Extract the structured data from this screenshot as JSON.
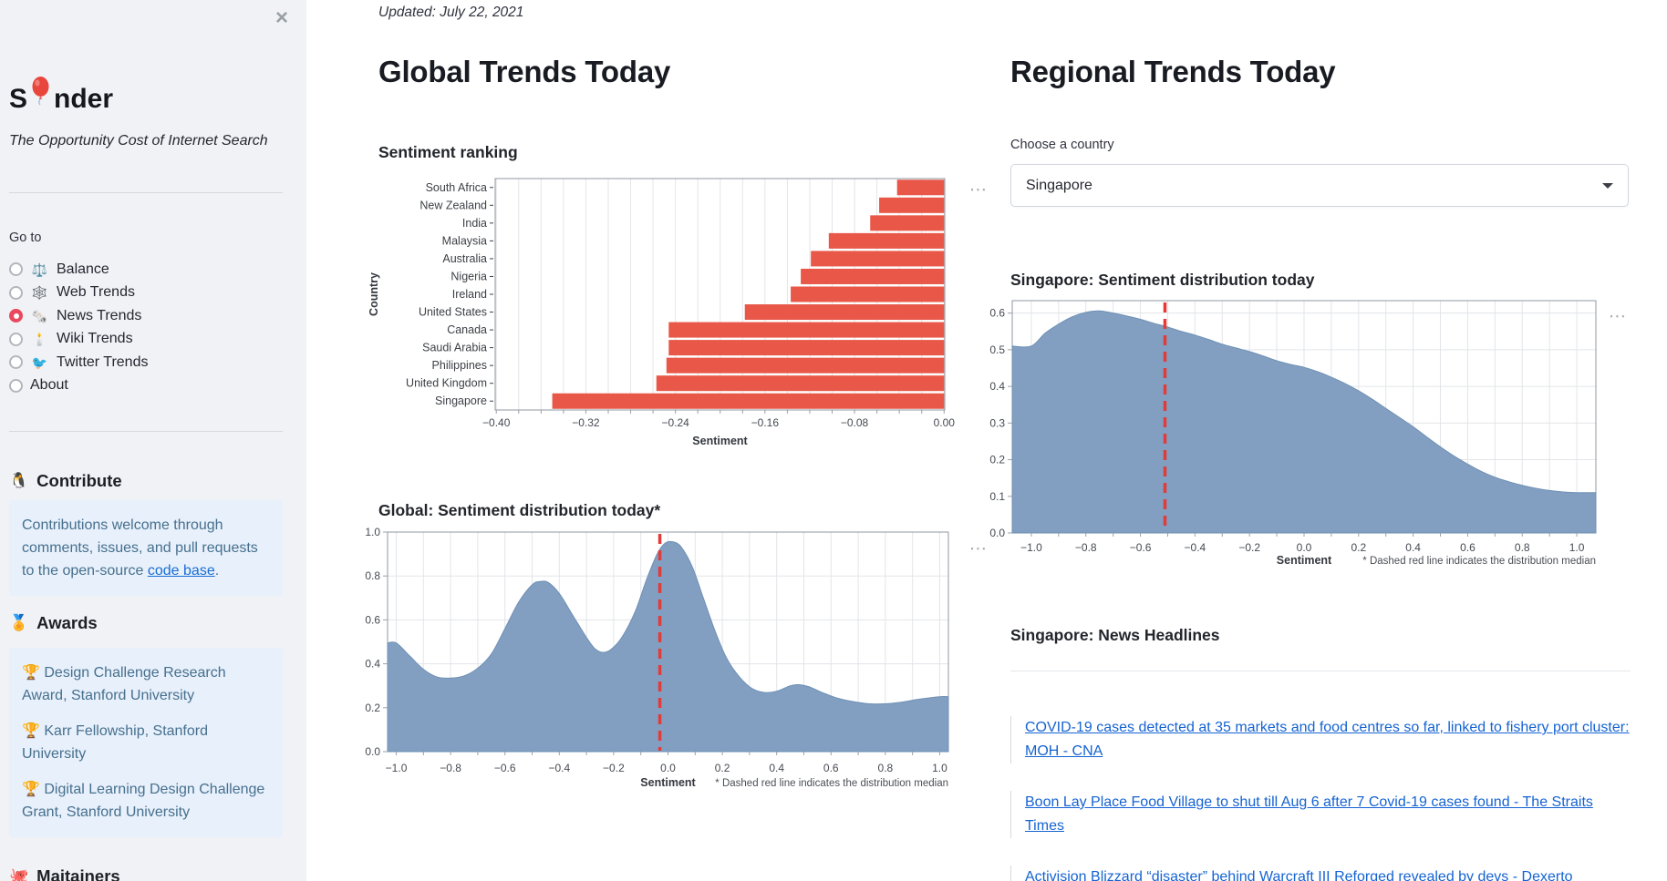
{
  "sidebar": {
    "close_icon": "×",
    "logo": {
      "prefix": "S",
      "suffix": "nder",
      "balloon_icon": "red-balloon"
    },
    "tagline": "The Opportunity Cost of Internet Search",
    "nav_label": "Go to",
    "nav_items": [
      {
        "icon": "⚖️",
        "label": "Balance",
        "selected": false
      },
      {
        "icon": "🕸️",
        "label": "Web Trends",
        "selected": false
      },
      {
        "icon": "🗞️",
        "label": "News Trends",
        "selected": true
      },
      {
        "icon": "🕯️",
        "label": "Wiki Trends",
        "selected": false
      },
      {
        "icon": "🐦",
        "label": "Twitter Trends",
        "selected": false
      },
      {
        "icon": "",
        "label": "About",
        "selected": false
      }
    ],
    "contribute": {
      "icon": "🐧",
      "title": "Contribute",
      "body_pre": "Contributions welcome through comments, issues, and pull requests to the open-source ",
      "link_text": "code base",
      "body_post": "."
    },
    "awards": {
      "icon": "🏅",
      "title": "Awards",
      "items": [
        {
          "icon": "🏆",
          "text": "Design Challenge Research Award, Stanford University"
        },
        {
          "icon": "🏆",
          "text": "Karr Fellowship, Stanford University"
        },
        {
          "icon": "🏆",
          "text": "Digital Learning Design Challenge Grant, Stanford University"
        }
      ]
    },
    "maintainers": {
      "icon": "🐙",
      "title": "Maitainers"
    }
  },
  "main": {
    "updated": "Updated: July 22, 2021",
    "global_title": "Global Trends Today",
    "regional_title": "Regional Trends Today",
    "choose_label": "Choose a country",
    "country_select_value": "Singapore",
    "headlines_title": "Singapore: News Headlines",
    "headlines": [
      {
        "text": "COVID-19 cases detected at 35 markets and food centres so far, linked to fishery port cluster: MOH - CNA"
      },
      {
        "text": "Boon Lay Place Food Village to shut till Aug 6 after 7 Covid-19 cases found - The Straits Times"
      },
      {
        "text": "Activision Blizzard “disaster” behind Warcraft III Reforged revealed by devs - Dexerto"
      }
    ],
    "more_icon_glyph": "⋯"
  },
  "chart_data": [
    {
      "id": "sentiment-ranking",
      "type": "bar",
      "orientation": "horizontal",
      "title": "Sentiment ranking",
      "xlabel": "Sentiment",
      "ylabel": "Country",
      "xlim": [
        -0.4,
        0.0
      ],
      "xticks": [
        -0.4,
        -0.32,
        -0.24,
        -0.16,
        -0.08,
        0.0
      ],
      "grid_step": 0.02,
      "bar_color": "#e85748",
      "categories": [
        "South Africa",
        "New Zealand",
        "India",
        "Malaysia",
        "Australia",
        "Nigeria",
        "Ireland",
        "United States",
        "Canada",
        "Saudi Arabia",
        "Philippines",
        "United Kingdom",
        "Singapore"
      ],
      "values": [
        -0.042,
        -0.058,
        -0.066,
        -0.103,
        -0.119,
        -0.128,
        -0.137,
        -0.178,
        -0.246,
        -0.246,
        -0.248,
        -0.257,
        -0.35
      ]
    },
    {
      "id": "global-distribution",
      "type": "area",
      "title": "Global: Sentiment distribution today*",
      "xlabel": "Sentiment",
      "footnote": "* Dashed red line indicates the distribution median",
      "xlim": [
        -1.0,
        1.0
      ],
      "ylim": [
        0,
        1.0
      ],
      "yticks": [
        0.0,
        0.2,
        0.4,
        0.6,
        0.8,
        1.0
      ],
      "median": -0.03,
      "fill_color": "#7e9cbf",
      "median_color": "#e23c3a",
      "points": [
        [
          -1,
          0.495
        ],
        [
          -0.95,
          0.435
        ],
        [
          -0.9,
          0.375
        ],
        [
          -0.85,
          0.34
        ],
        [
          -0.8,
          0.335
        ],
        [
          -0.75,
          0.345
        ],
        [
          -0.7,
          0.38
        ],
        [
          -0.65,
          0.445
        ],
        [
          -0.6,
          0.56
        ],
        [
          -0.55,
          0.68
        ],
        [
          -0.5,
          0.76
        ],
        [
          -0.47,
          0.775
        ],
        [
          -0.44,
          0.77
        ],
        [
          -0.4,
          0.72
        ],
        [
          -0.35,
          0.62
        ],
        [
          -0.3,
          0.52
        ],
        [
          -0.27,
          0.47
        ],
        [
          -0.24,
          0.452
        ],
        [
          -0.21,
          0.465
        ],
        [
          -0.17,
          0.52
        ],
        [
          -0.12,
          0.64
        ],
        [
          -0.08,
          0.78
        ],
        [
          -0.04,
          0.9
        ],
        [
          -0.01,
          0.95
        ],
        [
          0.02,
          0.955
        ],
        [
          0.05,
          0.93
        ],
        [
          0.09,
          0.84
        ],
        [
          0.13,
          0.7
        ],
        [
          0.17,
          0.56
        ],
        [
          0.21,
          0.44
        ],
        [
          0.25,
          0.36
        ],
        [
          0.3,
          0.295
        ],
        [
          0.35,
          0.27
        ],
        [
          0.4,
          0.275
        ],
        [
          0.45,
          0.3
        ],
        [
          0.48,
          0.305
        ],
        [
          0.52,
          0.295
        ],
        [
          0.57,
          0.268
        ],
        [
          0.62,
          0.245
        ],
        [
          0.68,
          0.228
        ],
        [
          0.74,
          0.218
        ],
        [
          0.8,
          0.218
        ],
        [
          0.86,
          0.225
        ],
        [
          0.92,
          0.238
        ],
        [
          1,
          0.25
        ]
      ]
    },
    {
      "id": "singapore-distribution",
      "type": "area",
      "title": "Singapore: Sentiment distribution today",
      "xlabel": "Sentiment",
      "footnote": "* Dashed red line indicates the distribution median",
      "xlim": [
        -1.0,
        1.0
      ],
      "ylim": [
        0,
        0.65
      ],
      "yticks": [
        0.0,
        0.1,
        0.2,
        0.3,
        0.4,
        0.5,
        0.6
      ],
      "median": -0.51,
      "fill_color": "#7e9cbf",
      "median_color": "#e23c3a",
      "points": [
        [
          -1,
          0.51
        ],
        [
          -0.95,
          0.545
        ],
        [
          -0.9,
          0.57
        ],
        [
          -0.85,
          0.59
        ],
        [
          -0.8,
          0.602
        ],
        [
          -0.75,
          0.606
        ],
        [
          -0.7,
          0.6
        ],
        [
          -0.65,
          0.592
        ],
        [
          -0.6,
          0.583
        ],
        [
          -0.55,
          0.572
        ],
        [
          -0.5,
          0.562
        ],
        [
          -0.45,
          0.55
        ],
        [
          -0.4,
          0.54
        ],
        [
          -0.35,
          0.528
        ],
        [
          -0.3,
          0.515
        ],
        [
          -0.25,
          0.505
        ],
        [
          -0.2,
          0.495
        ],
        [
          -0.15,
          0.483
        ],
        [
          -0.1,
          0.47
        ],
        [
          -0.05,
          0.46
        ],
        [
          0,
          0.452
        ],
        [
          0.05,
          0.44
        ],
        [
          0.1,
          0.425
        ],
        [
          0.15,
          0.408
        ],
        [
          0.2,
          0.388
        ],
        [
          0.25,
          0.365
        ],
        [
          0.3,
          0.34
        ],
        [
          0.35,
          0.315
        ],
        [
          0.4,
          0.29
        ],
        [
          0.45,
          0.262
        ],
        [
          0.5,
          0.235
        ],
        [
          0.55,
          0.21
        ],
        [
          0.6,
          0.188
        ],
        [
          0.65,
          0.168
        ],
        [
          0.7,
          0.152
        ],
        [
          0.75,
          0.14
        ],
        [
          0.8,
          0.13
        ],
        [
          0.85,
          0.122
        ],
        [
          0.9,
          0.116
        ],
        [
          0.95,
          0.112
        ],
        [
          1,
          0.11
        ]
      ]
    }
  ]
}
